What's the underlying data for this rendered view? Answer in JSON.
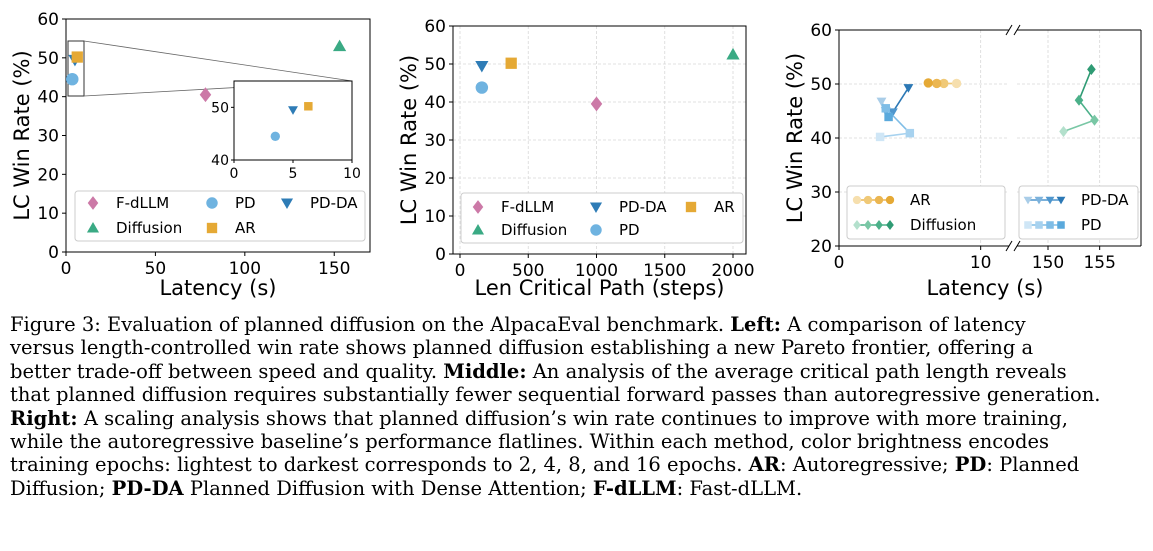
{
  "colors": {
    "fdllm": "#cc79a7",
    "diffusion": "#3aaa84",
    "pd": "#6fb3e0",
    "pdda": "#2e7cb6",
    "ar": "#e5a935",
    "ar_shades": [
      "#f6dfae",
      "#f0c977",
      "#ebb651",
      "#e5a935"
    ],
    "diff_shades": [
      "#b3e0cc",
      "#79c7a5",
      "#4bb089",
      "#2f9b74"
    ],
    "pd_shades": [
      "#cfe6f6",
      "#a7d2ef",
      "#7fbde6",
      "#5aa9dc"
    ],
    "pdda_shades": [
      "#a9cde8",
      "#7cb2dc",
      "#4f96cd",
      "#2c78b5"
    ]
  },
  "chart_data": [
    {
      "type": "scatter",
      "id": "left",
      "xlabel": "Latency (s)",
      "ylabel": "LC Win Rate (%)",
      "xlim": [
        0,
        170
      ],
      "ylim": [
        0,
        60
      ],
      "xticks": [
        "0",
        "50",
        "100",
        "150"
      ],
      "xtick_values": [
        0,
        50,
        100,
        150
      ],
      "yticks": [
        "0",
        "10",
        "20",
        "30",
        "40",
        "50",
        "60"
      ],
      "ytick_values": [
        0,
        10,
        20,
        30,
        40,
        50,
        60
      ],
      "series": [
        {
          "name": "F-dLLM",
          "marker": "diamond",
          "color": "fdllm",
          "points": [
            [
              78,
              40.5
            ]
          ]
        },
        {
          "name": "PD",
          "marker": "circle",
          "color": "pd",
          "points": [
            [
              3.5,
              44.5
            ]
          ]
        },
        {
          "name": "PD-DA",
          "marker": "tri_down",
          "color": "pdda",
          "points": [
            [
              5,
              49.5
            ]
          ]
        },
        {
          "name": "Diffusion",
          "marker": "tri_up",
          "color": "diffusion",
          "points": [
            [
              153,
              53
            ]
          ]
        },
        {
          "name": "AR",
          "marker": "square",
          "color": "ar",
          "points": [
            [
              6.3,
              50.2
            ]
          ]
        }
      ],
      "legend": {
        "placement": "lower-right",
        "columns": 3,
        "order": [
          "F-dLLM",
          "PD",
          "PD-DA",
          "Diffusion",
          "AR"
        ]
      },
      "inset": {
        "xlim": [
          0,
          10
        ],
        "ylim": [
          40,
          55
        ],
        "xticks": [
          "0",
          "5",
          "10"
        ],
        "xtick_values": [
          0,
          5,
          10
        ],
        "yticks": [
          "40",
          "50"
        ],
        "ytick_values": [
          40,
          50
        ],
        "series_ids": [
          "PD",
          "PD-DA",
          "AR"
        ]
      }
    },
    {
      "type": "scatter",
      "id": "middle",
      "xlabel": "Len Critical Path (steps)",
      "ylabel": "LC Win Rate (%)",
      "xlim": [
        0,
        2000
      ],
      "ylim": [
        0,
        60
      ],
      "xticks": [
        "0",
        "500",
        "1000",
        "1500",
        "2000"
      ],
      "xtick_values": [
        0,
        500,
        1000,
        1500,
        2000
      ],
      "yticks": [
        "0",
        "10",
        "20",
        "30",
        "40",
        "50",
        "60"
      ],
      "ytick_values": [
        0,
        10,
        20,
        30,
        40,
        50,
        60
      ],
      "grid": true,
      "series": [
        {
          "name": "F-dLLM",
          "marker": "diamond",
          "color": "fdllm",
          "points": [
            [
              1000,
              39.5
            ]
          ]
        },
        {
          "name": "PD-DA",
          "marker": "tri_down",
          "color": "pdda",
          "points": [
            [
              160,
              49.5
            ]
          ]
        },
        {
          "name": "AR",
          "marker": "square",
          "color": "ar",
          "points": [
            [
              375,
              50.2
            ]
          ]
        },
        {
          "name": "Diffusion",
          "marker": "tri_up",
          "color": "diffusion",
          "points": [
            [
              2000,
              52.5
            ]
          ]
        },
        {
          "name": "PD",
          "marker": "circle",
          "color": "pd",
          "points": [
            [
              160,
              43.8
            ]
          ]
        }
      ],
      "legend": {
        "placement": "lower-center",
        "columns": 3,
        "order": [
          "F-dLLM",
          "PD-DA",
          "AR",
          "Diffusion",
          "PD"
        ]
      }
    },
    {
      "type": "line",
      "id": "right",
      "xlabel": "Latency (s)",
      "ylabel": "LC Win Rate (%)",
      "ylim": [
        20,
        60
      ],
      "yticks": [
        "20",
        "30",
        "40",
        "50",
        "60"
      ],
      "ytick_values": [
        20,
        30,
        40,
        50,
        60
      ],
      "grid": true,
      "broken_axis": true,
      "segments": [
        {
          "xlim": [
            0,
            12
          ],
          "xticks": [
            "0",
            "10"
          ],
          "xtick_values": [
            0,
            10
          ]
        },
        {
          "xlim": [
            147,
            159
          ],
          "xticks": [
            "150",
            "155"
          ],
          "xtick_values": [
            150,
            155
          ]
        }
      ],
      "series": [
        {
          "name": "AR",
          "marker": "circle",
          "shade_key": "ar_shades",
          "segment": 0,
          "epochs": [
            2,
            4,
            8,
            16
          ],
          "x": [
            8.3,
            7.4,
            6.9,
            6.3
          ],
          "y": [
            50.1,
            50.1,
            50.1,
            50.2
          ]
        },
        {
          "name": "Diffusion",
          "marker": "diamond",
          "shade_key": "diff_shades",
          "segment": 1,
          "epochs": [
            2,
            4,
            8,
            16
          ],
          "x": [
            151.5,
            154.5,
            153.0,
            154.2
          ],
          "y": [
            41.2,
            43.3,
            47.0,
            52.7
          ]
        },
        {
          "name": "PD-DA",
          "marker": "tri_down",
          "shade_key": "pdda_shades",
          "segment": 0,
          "epochs": [
            2,
            4,
            8,
            16
          ],
          "x": [
            3.0,
            3.3,
            3.8,
            4.9
          ],
          "y": [
            46.8,
            45.0,
            44.8,
            49.3
          ]
        },
        {
          "name": "PD",
          "marker": "square",
          "shade_key": "pd_shades",
          "segment": 0,
          "epochs": [
            2,
            4,
            8,
            16
          ],
          "x": [
            2.9,
            5.0,
            3.3,
            3.5
          ],
          "y": [
            40.2,
            40.9,
            45.5,
            43.9
          ]
        }
      ],
      "legend": {
        "placement": "lower",
        "columns": 2,
        "order": [
          "AR",
          "PD-DA",
          "Diffusion",
          "PD"
        ]
      }
    }
  ],
  "caption": {
    "figure_label": "Figure 3:",
    "line1_text": " Evaluation of planned diffusion on the AlpacaEval benchmark. ",
    "left_label": "Left:",
    "line1_tail": " A comparison of latency",
    "line2": "versus length-controlled win rate shows planned diffusion establishing a new Pareto frontier, offering a",
    "line3_text": "better trade-off between speed and quality. ",
    "middle_label": "Middle:",
    "line3_tail": " An analysis of the average critical path length reveals",
    "line4": "that planned diffusion requires substantially fewer sequential forward passes than autoregressive generation.",
    "right_label": "Right:",
    "line5_tail": " A scaling analysis shows that planned diffusion’s win rate continues to improve with more training,",
    "line6": "while the autoregressive baseline’s performance flatlines.  Within each method, color brightness encodes",
    "line7_text": "training epochs: lightest to darkest corresponds to 2, 4, 8, and 16 epochs. ",
    "ar_label": "AR",
    "ar_def": ": Autoregressive; ",
    "pd_label": "PD",
    "pd_def": ": Planned",
    "line8_text": "Diffusion; ",
    "pdda_label": "PD-DA",
    "pdda_def": " Planned Diffusion with Dense Attention; ",
    "fdllm_label": "F-dLLM",
    "fdllm_def": ": Fast-dLLM."
  }
}
